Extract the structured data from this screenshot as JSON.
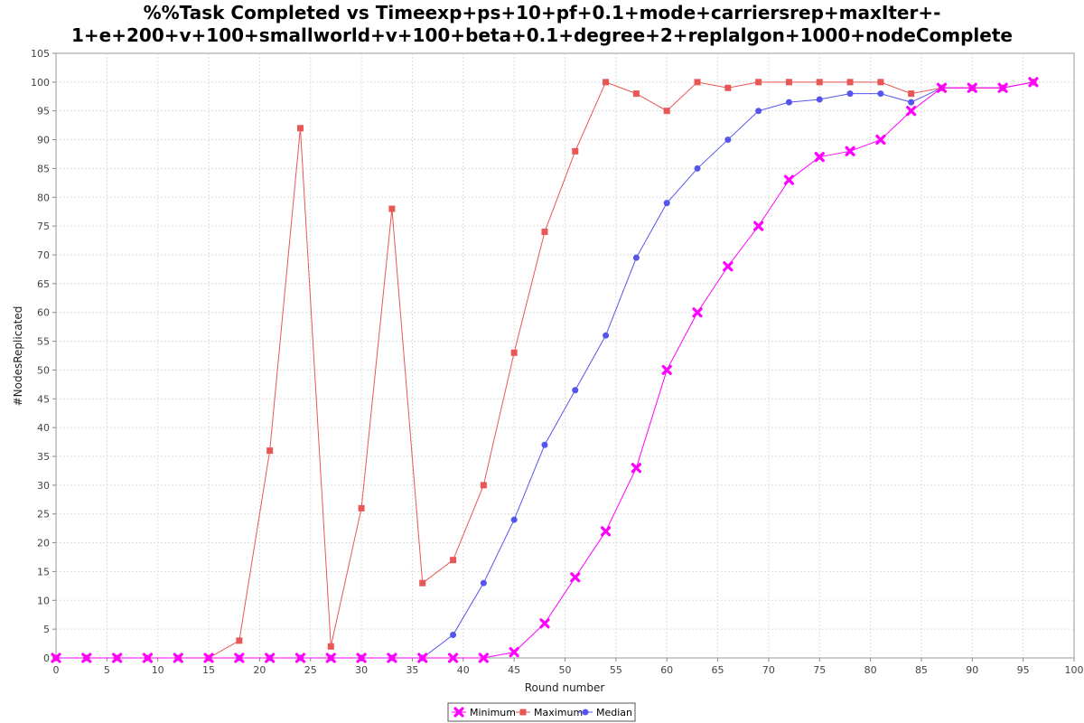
{
  "chart_data": {
    "type": "line",
    "title": [
      "%%Task Completed vs Timeexp+ps+10+pf+0.1+mode+carriersrep+maxIter+-",
      "1+e+200+v+100+smallworld+v+100+beta+0.1+degree+2+replalgon+1000+nodeComplete"
    ],
    "xlabel": "Round number",
    "ylabel": "#NodesReplicated",
    "xlim": [
      0,
      100
    ],
    "ylim": [
      0,
      105
    ],
    "xticks": [
      0,
      5,
      10,
      15,
      20,
      25,
      30,
      35,
      40,
      45,
      50,
      55,
      60,
      65,
      70,
      75,
      80,
      85,
      90,
      95,
      100
    ],
    "yticks": [
      0,
      5,
      10,
      15,
      20,
      25,
      30,
      35,
      40,
      45,
      50,
      55,
      60,
      65,
      70,
      75,
      80,
      85,
      90,
      95,
      100,
      105
    ],
    "grid": true,
    "legend_position": "bottom",
    "x": [
      0,
      3,
      6,
      9,
      12,
      15,
      18,
      21,
      24,
      27,
      30,
      33,
      36,
      39,
      42,
      45,
      48,
      51,
      54,
      57,
      60,
      63,
      66,
      69,
      72,
      75,
      78,
      81,
      84,
      87,
      90,
      93,
      96
    ],
    "series": [
      {
        "name": "Minimum",
        "color": "#ff00ff",
        "marker": "x",
        "values": [
          0,
          0,
          0,
          0,
          0,
          0,
          0,
          0,
          0,
          0,
          0,
          0,
          0,
          0,
          0,
          1,
          6,
          14,
          22,
          33,
          50,
          60,
          68,
          75,
          83,
          87,
          88,
          90,
          95,
          99,
          99,
          99,
          100
        ]
      },
      {
        "name": "Maximum",
        "color": "#e85656",
        "marker": "square",
        "values": [
          0,
          0,
          0,
          0,
          0,
          0,
          3,
          36,
          92,
          2,
          26,
          78,
          13,
          17,
          30,
          53,
          74,
          88,
          100,
          98,
          95,
          100,
          99,
          100,
          100,
          100,
          100,
          100,
          98,
          99,
          99,
          99,
          100
        ]
      },
      {
        "name": "Median",
        "color": "#5555ee",
        "marker": "circle",
        "values": [
          0,
          0,
          0,
          0,
          0,
          0,
          0,
          0,
          0,
          0,
          0,
          0,
          0,
          4,
          13,
          24,
          37,
          46.5,
          56,
          69.5,
          79,
          85,
          90,
          95,
          96.5,
          97,
          98,
          98,
          96.5,
          99,
          99,
          99,
          100
        ]
      }
    ]
  }
}
